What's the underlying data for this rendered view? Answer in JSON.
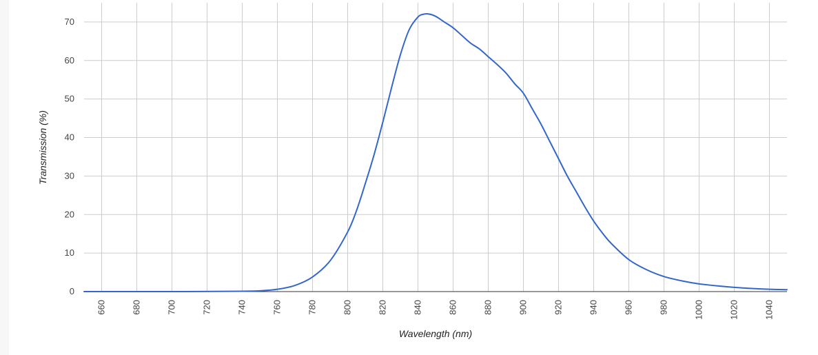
{
  "chart_data": {
    "type": "line",
    "title": "",
    "xlabel": "Wavelength (nm)",
    "ylabel": "Transmission (%)",
    "xlim": [
      650,
      1050
    ],
    "ylim": [
      0,
      75
    ],
    "x_ticks": [
      660,
      680,
      700,
      720,
      740,
      760,
      780,
      800,
      820,
      840,
      860,
      880,
      900,
      920,
      940,
      960,
      980,
      1000,
      1020,
      1040
    ],
    "y_ticks": [
      0,
      10,
      20,
      30,
      40,
      50,
      60,
      70
    ],
    "grid": true,
    "colors": {
      "line": "#3366cc",
      "grid": "#cccccc",
      "axis": "#333333"
    },
    "series": [
      {
        "x": [
          650,
          700,
          740,
          750,
          760,
          770,
          780,
          790,
          800,
          805,
          810,
          815,
          820,
          825,
          830,
          835,
          840,
          843,
          846,
          850,
          855,
          860,
          865,
          870,
          875,
          880,
          885,
          890,
          895,
          900,
          905,
          910,
          915,
          920,
          925,
          930,
          935,
          940,
          945,
          950,
          960,
          970,
          980,
          990,
          1000,
          1010,
          1020,
          1030,
          1040,
          1050
        ],
        "y": [
          0,
          0,
          0.1,
          0.2,
          0.6,
          1.6,
          3.8,
          8.0,
          15.5,
          21.0,
          28.0,
          35.5,
          44.0,
          53.0,
          61.5,
          68.0,
          71.3,
          72.0,
          72.1,
          71.5,
          70.0,
          68.5,
          66.5,
          64.5,
          63.0,
          61.0,
          59.0,
          56.8,
          54.0,
          51.5,
          47.5,
          43.5,
          39.0,
          34.5,
          30.0,
          26.0,
          22.0,
          18.3,
          15.2,
          12.5,
          8.3,
          5.7,
          3.9,
          2.8,
          2.0,
          1.5,
          1.1,
          0.8,
          0.6,
          0.5
        ]
      }
    ]
  }
}
